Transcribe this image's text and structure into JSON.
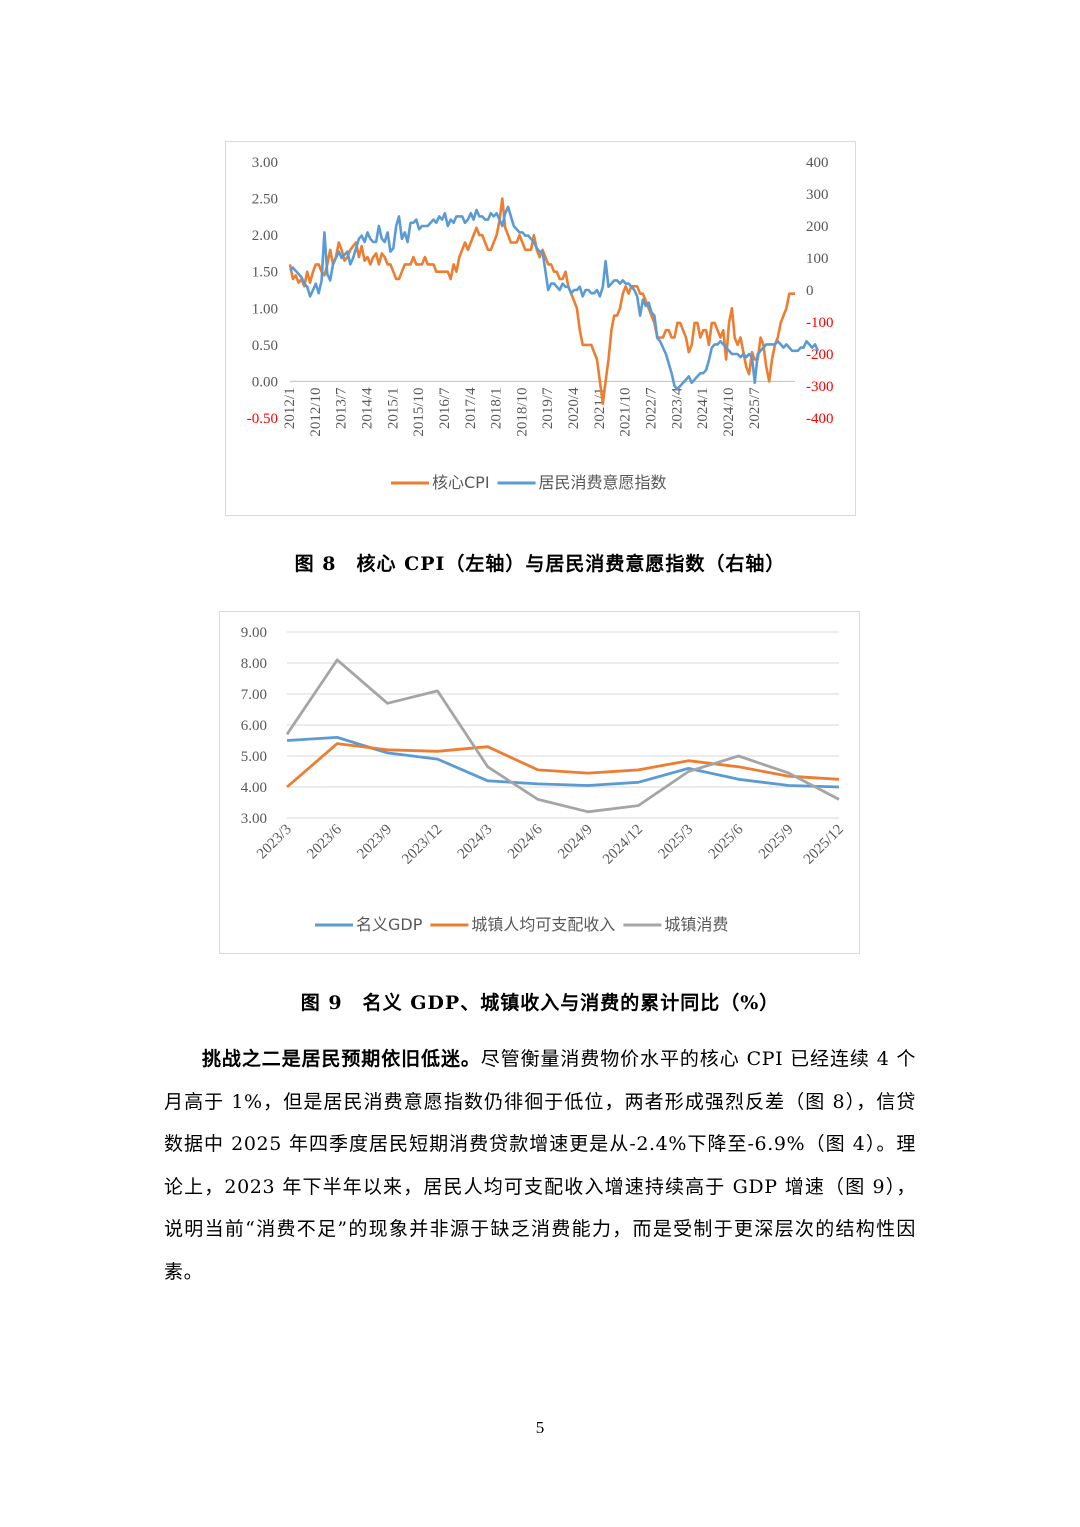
{
  "figure8": {
    "caption": "图 8　核心 CPI（左轴）与居民消费意愿指数（右轴）",
    "chart_data": {
      "type": "line",
      "left_axis": {
        "ylim": [
          -0.5,
          3.0
        ],
        "ticks": [
          "-0.50",
          "0.00",
          "0.50",
          "1.00",
          "1.50",
          "2.00",
          "2.50",
          "3.00"
        ]
      },
      "right_axis": {
        "ylim": [
          -400,
          400
        ],
        "ticks": [
          "-400",
          "-300",
          "-200",
          "-100",
          "0",
          "100",
          "200",
          "300",
          "400"
        ]
      },
      "x_tick_labels": [
        "2012/1",
        "2012/10",
        "2013/7",
        "2014/4",
        "2015/1",
        "2015/10",
        "2016/7",
        "2017/4",
        "2018/1",
        "2018/10",
        "2019/7",
        "2020/4",
        "2021/1",
        "2021/10",
        "2022/7",
        "2023/4",
        "2024/1",
        "2024/10",
        "2025/7"
      ],
      "grid": true,
      "legend": "bottom",
      "x_start": "2012/1",
      "series": [
        {
          "name": "核心CPI",
          "axis": "left",
          "color": "#ed7d31",
          "values": [
            1.6,
            1.4,
            1.45,
            1.35,
            1.4,
            1.3,
            1.5,
            1.35,
            1.5,
            1.6,
            1.6,
            1.5,
            1.45,
            1.6,
            1.8,
            1.6,
            1.7,
            1.9,
            1.8,
            1.65,
            1.7,
            1.8,
            1.85,
            1.9,
            1.7,
            1.85,
            1.65,
            1.7,
            1.6,
            1.7,
            1.75,
            1.6,
            1.75,
            1.7,
            1.6,
            1.6,
            1.5,
            1.4,
            1.4,
            1.5,
            1.6,
            1.6,
            1.6,
            1.7,
            1.6,
            1.6,
            1.6,
            1.7,
            1.6,
            1.6,
            1.6,
            1.5,
            1.5,
            1.5,
            1.5,
            1.5,
            1.4,
            1.6,
            1.5,
            1.7,
            1.8,
            1.9,
            1.8,
            1.9,
            2.0,
            2.1,
            2.0,
            2.0,
            1.9,
            1.8,
            1.8,
            1.9,
            2.0,
            2.2,
            2.5,
            2.1,
            2.0,
            1.9,
            1.9,
            1.9,
            2.0,
            1.9,
            1.8,
            1.8,
            1.8,
            2.0,
            1.8,
            1.7,
            1.8,
            1.7,
            1.6,
            1.6,
            1.5,
            1.5,
            1.4,
            1.4,
            1.5,
            1.3,
            1.2,
            1.1,
            1.0,
            0.7,
            0.5,
            0.5,
            0.5,
            0.5,
            0.4,
            0.3,
            0.0,
            -0.3,
            0.0,
            0.3,
            0.7,
            0.9,
            0.9,
            1.0,
            1.2,
            1.3,
            1.2,
            1.3,
            1.3,
            1.3,
            1.2,
            1.2,
            1.1,
            1.0,
            0.9,
            0.8,
            0.6,
            0.6,
            0.6,
            0.7,
            0.7,
            0.6,
            0.6,
            0.8,
            0.8,
            0.7,
            0.6,
            0.4,
            0.5,
            0.8,
            0.8,
            0.6,
            0.7,
            0.7,
            0.5,
            0.8,
            0.8,
            0.7,
            0.6,
            0.7,
            0.3,
            0.8,
            1.0,
            0.6,
            0.5,
            0.6,
            0.4,
            0.2,
            0.1,
            0.4,
            0.3,
            0.3,
            0.6,
            0.5,
            0.2,
            0.0,
            0.3,
            0.5,
            0.6,
            0.8,
            0.9,
            1.0,
            1.2,
            1.2,
            1.2
          ]
        },
        {
          "name": "居民消费意愿指数",
          "axis": "right",
          "color": "#5b9bd5",
          "values": [
            60,
            70,
            60,
            50,
            40,
            20,
            10,
            -20,
            0,
            20,
            -10,
            30,
            180,
            50,
            30,
            80,
            100,
            120,
            100,
            110,
            120,
            80,
            100,
            130,
            160,
            170,
            150,
            180,
            160,
            150,
            150,
            200,
            160,
            150,
            180,
            120,
            130,
            200,
            230,
            160,
            180,
            150,
            210,
            210,
            220,
            190,
            200,
            200,
            200,
            210,
            220,
            210,
            230,
            220,
            240,
            200,
            220,
            210,
            230,
            230,
            230,
            210,
            220,
            240,
            220,
            250,
            230,
            230,
            220,
            220,
            240,
            230,
            240,
            220,
            200,
            240,
            260,
            230,
            200,
            190,
            180,
            180,
            170,
            170,
            160,
            150,
            130,
            120,
            120,
            60,
            0,
            20,
            20,
            10,
            0,
            20,
            10,
            10,
            -10,
            0,
            0,
            10,
            -20,
            0,
            0,
            -10,
            -10,
            0,
            -20,
            10,
            90,
            10,
            20,
            30,
            30,
            20,
            30,
            20,
            20,
            10,
            0,
            -20,
            -80,
            -30,
            -50,
            -40,
            -70,
            -80,
            -150,
            -160,
            -180,
            -200,
            -230,
            -260,
            -300,
            -310,
            -300,
            -290,
            -280,
            -270,
            -290,
            -280,
            -270,
            -260,
            -260,
            -250,
            -220,
            -180,
            -170,
            -170,
            -160,
            -170,
            -180,
            -190,
            -200,
            -200,
            -200,
            -210,
            -200,
            -210,
            -200,
            -210,
            -290,
            -200,
            -190,
            -180,
            -170,
            -170,
            -170,
            -170,
            -160,
            -170,
            -180,
            -170,
            -180,
            -190,
            -190,
            -190,
            -180,
            -180,
            -160,
            -170,
            -180,
            -170,
            -190
          ]
        }
      ]
    }
  },
  "figure9": {
    "caption": "图 9　名义 GDP、城镇收入与消费的累计同比（%）",
    "chart_data": {
      "type": "line",
      "categories": [
        "2023/3",
        "2023/6",
        "2023/9",
        "2023/12",
        "2024/3",
        "2024/6",
        "2024/9",
        "2024/12",
        "2025/3",
        "2025/6",
        "2025/9",
        "2025/12"
      ],
      "ylim": [
        3.0,
        9.0
      ],
      "y_ticks": [
        "3.00",
        "4.00",
        "5.00",
        "6.00",
        "7.00",
        "8.00",
        "9.00"
      ],
      "grid": true,
      "legend": "bottom",
      "series": [
        {
          "name": "名义GDP",
          "color": "#5b9bd5",
          "values": [
            5.5,
            5.6,
            5.1,
            4.9,
            4.2,
            4.1,
            4.05,
            4.15,
            4.6,
            4.25,
            4.05,
            4.0
          ]
        },
        {
          "name": "城镇人均可支配收入",
          "color": "#ed7d31",
          "values": [
            4.0,
            5.4,
            5.2,
            5.15,
            5.3,
            4.55,
            4.45,
            4.55,
            4.85,
            4.65,
            4.35,
            4.25
          ]
        },
        {
          "name": "城镇消费",
          "color": "#a5a5a5",
          "values": [
            5.7,
            8.1,
            6.7,
            7.1,
            4.65,
            3.6,
            3.2,
            3.4,
            4.5,
            5.0,
            4.45,
            3.6
          ]
        }
      ]
    }
  },
  "body": {
    "lead": "挑战之二是居民预期依旧低迷。",
    "text": "尽管衡量消费物价水平的核心 CPI 已经连续 4 个月高于 1%，但是居民消费意愿指数仍徘徊于低位，两者形成强烈反差（图 8），信贷数据中 2025 年四季度居民短期消费贷款增速更是从-2.4%下降至-6.9%（图 4）。理论上，2023 年下半年以来，居民人均可支配收入增速持续高于 GDP 增速（图 9），说明当前“消费不足”的现象并非源于缺乏消费能力，而是受制于更深层次的结构性因素。"
  },
  "page_number": "5"
}
